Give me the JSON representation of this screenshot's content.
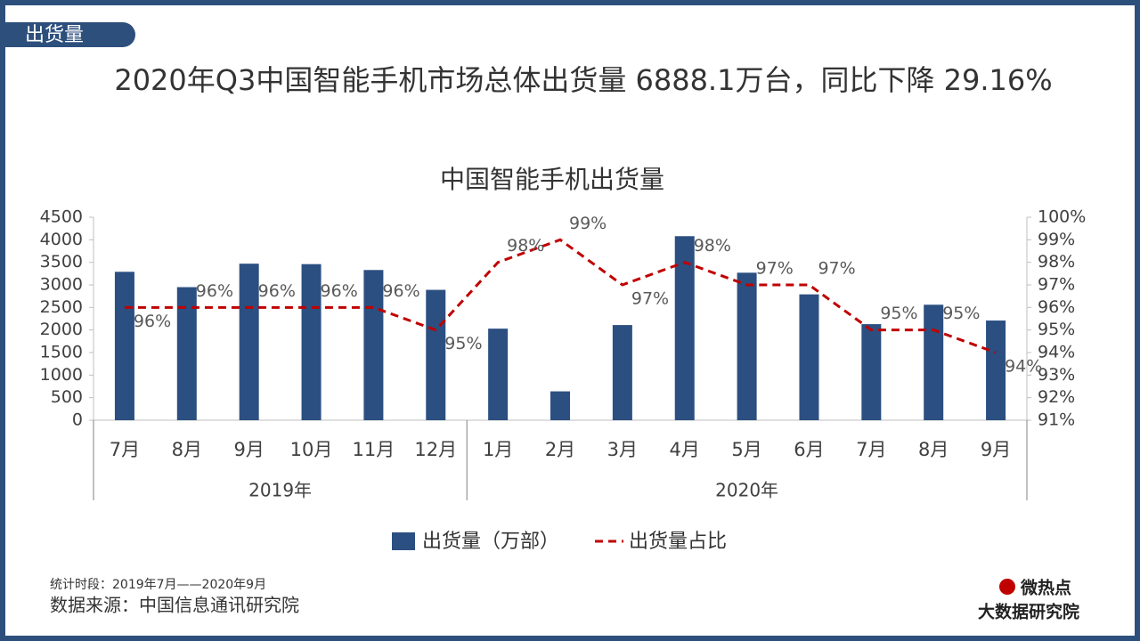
{
  "page": {
    "tag": "出货量",
    "headline": "2020年Q3中国智能手机市场总体出货量 6888.1万台，同比下降 29.16%",
    "period_note": "统计时段：2019年7月——2020年9月",
    "source_note": "数据来源：中国信息通讯研究院",
    "logo_top": "微热点",
    "logo_bottom": "大数据研究院"
  },
  "chart_data": {
    "type": "bar",
    "title": "中国智能手机出货量",
    "groups": [
      {
        "label": "2019年",
        "categories": [
          "7月",
          "8月",
          "9月",
          "10月",
          "11月",
          "12月"
        ]
      },
      {
        "label": "2020年",
        "categories": [
          "1月",
          "2月",
          "3月",
          "4月",
          "5月",
          "6月",
          "7月",
          "8月",
          "9月"
        ]
      }
    ],
    "series": [
      {
        "name": "出货量（万部）",
        "type": "bar",
        "color": "#2b4f81",
        "values": [
          3290,
          2950,
          3470,
          3460,
          3330,
          2890,
          2030,
          640,
          2110,
          4080,
          3270,
          2790,
          2130,
          2560,
          2210
        ]
      },
      {
        "name": "出货量占比",
        "type": "line",
        "axis": "y2",
        "color": "#c00000",
        "dashed": true,
        "values": [
          96,
          96,
          96,
          96,
          96,
          95,
          98,
          99,
          97,
          98,
          97,
          97,
          95,
          95,
          94
        ],
        "value_labels": [
          "96%",
          "96%",
          "96%",
          "96%",
          "96%",
          "95%",
          "98%",
          "99%",
          "97%",
          "98%",
          "97%",
          "97%",
          "95%",
          "95%",
          "94%"
        ]
      }
    ],
    "ylim": [
      0,
      4500
    ],
    "yticks": [
      0,
      500,
      1000,
      1500,
      2000,
      2500,
      3000,
      3500,
      4000,
      4500
    ],
    "y2lim": [
      91,
      100
    ],
    "y2ticks": [
      {
        "value": 91,
        "label": "91%"
      },
      {
        "value": 92,
        "label": "92%"
      },
      {
        "value": 93,
        "label": "93%"
      },
      {
        "value": 94,
        "label": "94%"
      },
      {
        "value": 95,
        "label": "95%"
      },
      {
        "value": 96,
        "label": "96%"
      },
      {
        "value": 97,
        "label": "97%"
      },
      {
        "value": 98,
        "label": "98%"
      },
      {
        "value": 99,
        "label": "99%"
      },
      {
        "value": 100,
        "label": "100%"
      }
    ],
    "legend": "bottom"
  }
}
